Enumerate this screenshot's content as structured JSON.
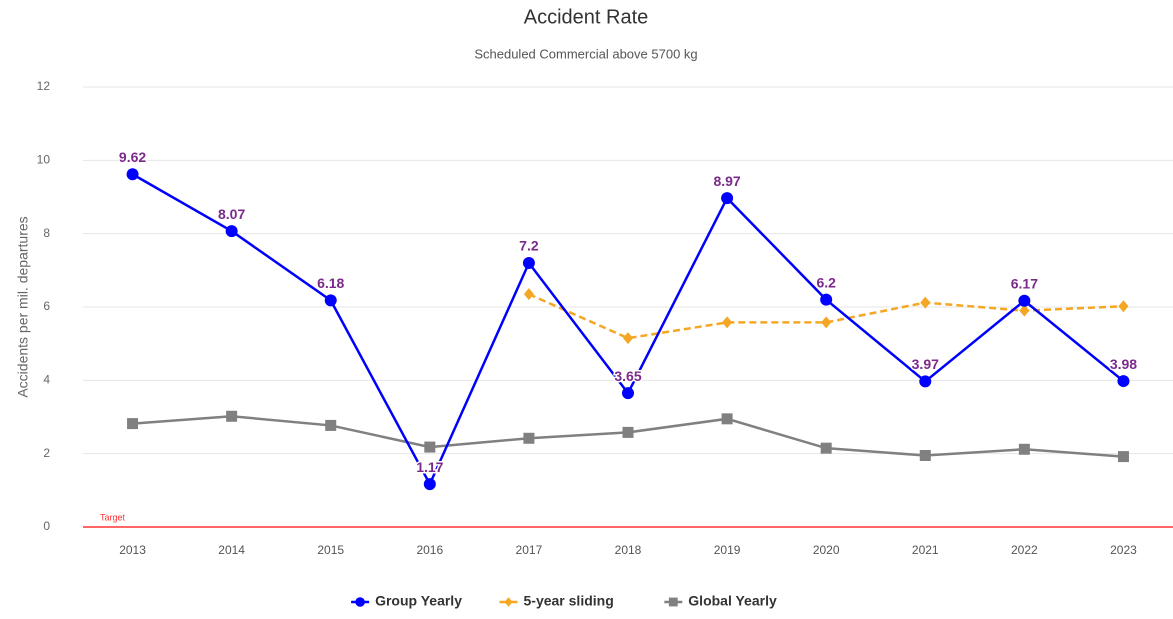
{
  "chart_data": {
    "type": "line",
    "title": "Accident Rate",
    "subtitle": "Scheduled Commercial above 5700 kg",
    "y_label": "Accidents per mil. departures",
    "categories": [
      "2013",
      "2014",
      "2015",
      "2016",
      "2017",
      "2018",
      "2019",
      "2020",
      "2021",
      "2022",
      "2023"
    ],
    "series": [
      {
        "name": "Group Yearly",
        "color": "#0000ff",
        "marker": "circle",
        "dash": false,
        "data_labels": true,
        "values": [
          9.62,
          8.07,
          6.18,
          1.17,
          7.2,
          3.65,
          8.97,
          6.2,
          3.97,
          6.17,
          3.98
        ]
      },
      {
        "name": "5-year sliding",
        "color": "#f5a623",
        "marker": "diamond",
        "dash": true,
        "data_labels": false,
        "values": [
          null,
          null,
          null,
          null,
          6.35,
          5.15,
          5.58,
          5.58,
          6.12,
          5.9,
          6.02
        ]
      },
      {
        "name": "Global Yearly",
        "color": "#808080",
        "marker": "square",
        "dash": false,
        "data_labels": false,
        "values": [
          2.82,
          3.02,
          2.77,
          2.18,
          2.42,
          2.58,
          2.95,
          2.15,
          1.95,
          2.12,
          1.92
        ]
      }
    ],
    "target": {
      "label": "Target",
      "value": 0,
      "color": "#ff3333"
    },
    "label_color": "#7b2a8c",
    "ylim": [
      0,
      12
    ],
    "yticks": [
      0,
      2,
      4,
      6,
      8,
      10,
      12
    ],
    "grid": true,
    "legend": "bottom"
  }
}
